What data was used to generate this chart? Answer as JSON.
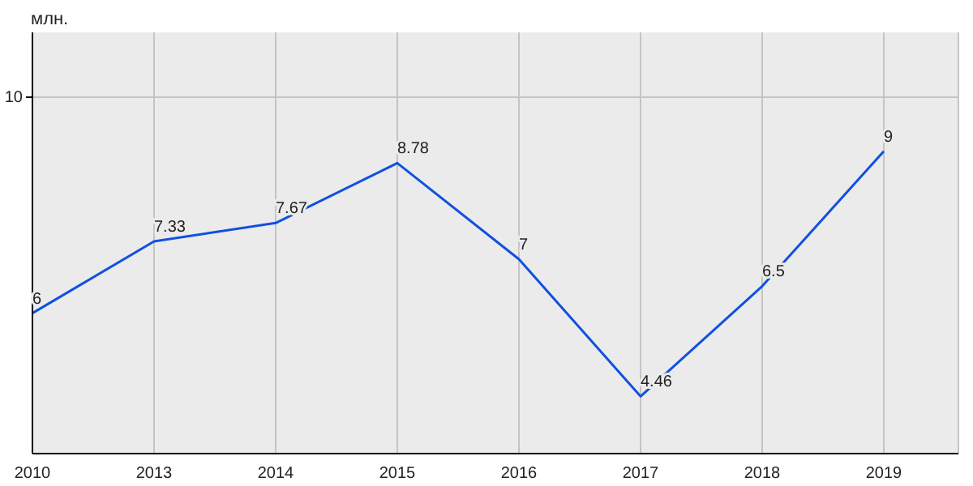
{
  "chart_data": {
    "type": "line",
    "ylabel": "млн.",
    "categories": [
      "2010",
      "2013",
      "2014",
      "2015",
      "2016",
      "2017",
      "2018",
      "2019"
    ],
    "series": [
      {
        "color": "#1150e0",
        "values": [
          6,
          7.33,
          7.67,
          8.78,
          7,
          4.46,
          6.5,
          9
        ]
      }
    ],
    "ylim": [
      3.4,
      11.2
    ],
    "ref_lines": [
      {
        "axis": "y",
        "value": 10,
        "label": "10",
        "color": "#c4c4c4"
      }
    ],
    "grid": "x",
    "data_labels": true,
    "marker": "none",
    "line_style": "solid"
  }
}
